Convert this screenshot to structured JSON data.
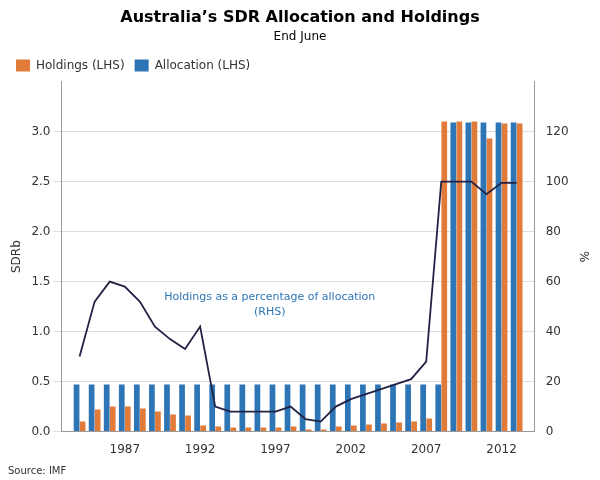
{
  "chart_data": {
    "type": "bar",
    "title": "Australia’s SDR Allocation and Holdings",
    "subtitle": "End June",
    "source": "Source: IMF",
    "ylabel": "SDRb",
    "y2label": "%",
    "x": [
      1984,
      1985,
      1986,
      1987,
      1988,
      1989,
      1990,
      1991,
      1992,
      1993,
      1994,
      1995,
      1996,
      1997,
      1998,
      1999,
      2000,
      2001,
      2002,
      2003,
      2004,
      2005,
      2006,
      2007,
      2008,
      2009,
      2010,
      2011,
      2012,
      2013
    ],
    "series": [
      {
        "name": "Allocation (LHS)",
        "color": "#2E75B6",
        "values": [
          0.47,
          0.47,
          0.47,
          0.47,
          0.47,
          0.47,
          0.47,
          0.47,
          0.47,
          0.47,
          0.47,
          0.47,
          0.47,
          0.47,
          0.47,
          0.47,
          0.47,
          0.47,
          0.47,
          0.47,
          0.47,
          0.47,
          0.47,
          0.47,
          0.47,
          3.09,
          3.09,
          3.09,
          3.09,
          3.09
        ]
      },
      {
        "name": "Holdings (LHS)",
        "color": "#E07B39",
        "values": [
          0.1,
          0.22,
          0.25,
          0.25,
          0.23,
          0.2,
          0.17,
          0.16,
          0.06,
          0.05,
          0.04,
          0.04,
          0.04,
          0.04,
          0.05,
          0.02,
          0.02,
          0.05,
          0.06,
          0.07,
          0.08,
          0.09,
          0.1,
          0.13,
          3.1,
          3.1,
          3.1,
          2.93,
          3.08,
          3.08
        ]
      },
      {
        "type": "line",
        "axis": "y2",
        "color": "#222244",
        "values": [
          30,
          52,
          60,
          58,
          52,
          42,
          37,
          33,
          42,
          10,
          8,
          8,
          8,
          8,
          10,
          5,
          4,
          10,
          13,
          15,
          17,
          19,
          21,
          28,
          100,
          100,
          100,
          95,
          99.5,
          99.5
        ]
      }
    ],
    "xlim": [
      1982.8,
      2014.2
    ],
    "xticks": [
      1987,
      1992,
      1997,
      2002,
      2007,
      2012
    ],
    "ylim": [
      0,
      3.5
    ],
    "yticks": [
      {
        "value": 0,
        "label": "0.0"
      },
      0.5,
      {
        "value": 1,
        "label": "1.0"
      },
      1.5,
      {
        "value": 2,
        "label": "2.0"
      },
      2.5,
      {
        "value": 3,
        "label": "3.0"
      }
    ],
    "y2lim": [
      0,
      140
    ],
    "y2ticks": [
      0,
      20,
      40,
      60,
      80,
      100,
      120
    ],
    "grid": "y",
    "legend": "upper left",
    "annotations": [
      {
        "text": "Holdings as a percentage of allocation\n(RHS)",
        "color": "#2E75B6"
      }
    ]
  }
}
